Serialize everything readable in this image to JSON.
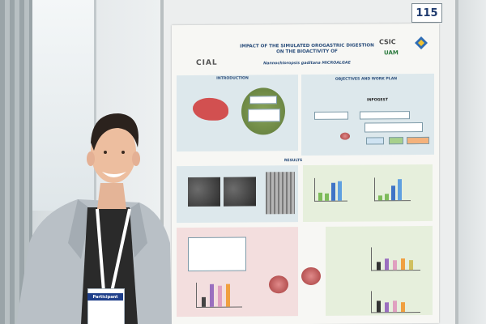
{
  "photo": {
    "board_number": "115",
    "badge_label": "Participant"
  },
  "poster": {
    "title": "IMPACT OF THE SIMULATED OROGASTRIC DIGESTION ON THE BIOACTIVITY OF",
    "species": "Nannochloropsis gaditana MICROALGAE",
    "logo_left": "CIAL",
    "logo_right_top": "CSIC",
    "logo_right_bottom": "UAM",
    "section_intro": "INTRODUCTION",
    "section_objectives": "OBJECTIVES AND WORK PLAN",
    "section_results": "RESULTS",
    "method_label": "INFOGEST"
  },
  "colors": {
    "board_number_text": "#1e3a6e",
    "poster_heading": "#2c4f7c",
    "badge_band": "#1f3f8a",
    "shirt": "#2a2a2a",
    "jacket": "#b9c0c6"
  }
}
